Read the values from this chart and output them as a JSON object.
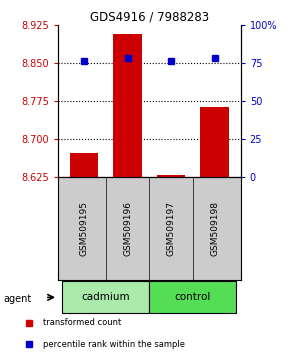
{
  "title": "GDS4916 / 7988283",
  "samples": [
    "GSM509195",
    "GSM509196",
    "GSM509197",
    "GSM509198"
  ],
  "bar_values": [
    8.672,
    8.907,
    8.628,
    8.762
  ],
  "percentile_values": [
    76,
    78,
    76,
    78
  ],
  "ylim_left": [
    8.625,
    8.925
  ],
  "ylim_right": [
    0,
    100
  ],
  "yticks_left": [
    8.625,
    8.7,
    8.775,
    8.85,
    8.925
  ],
  "yticks_right": [
    0,
    25,
    50,
    75,
    100
  ],
  "ytick_labels_right": [
    "0",
    "25",
    "50",
    "75",
    "100%"
  ],
  "hlines": [
    8.85,
    8.775,
    8.7
  ],
  "bar_color": "#cc0000",
  "percentile_color": "#0000cc",
  "bar_bottom": 8.625,
  "group_cadmium_indices": [
    0,
    1
  ],
  "group_control_indices": [
    2,
    3
  ],
  "group_cadmium_label": "cadmium",
  "group_control_label": "control",
  "group_cadmium_color": "#aaeaaa",
  "group_control_color": "#55dd55",
  "agent_label": "agent",
  "legend_items": [
    {
      "color": "#cc0000",
      "label": "transformed count"
    },
    {
      "color": "#0000cc",
      "label": "percentile rank within the sample"
    }
  ],
  "left_tick_color": "#cc0000",
  "right_tick_color": "#0000cc",
  "background_color": "#ffffff",
  "sample_box_color": "#cccccc"
}
